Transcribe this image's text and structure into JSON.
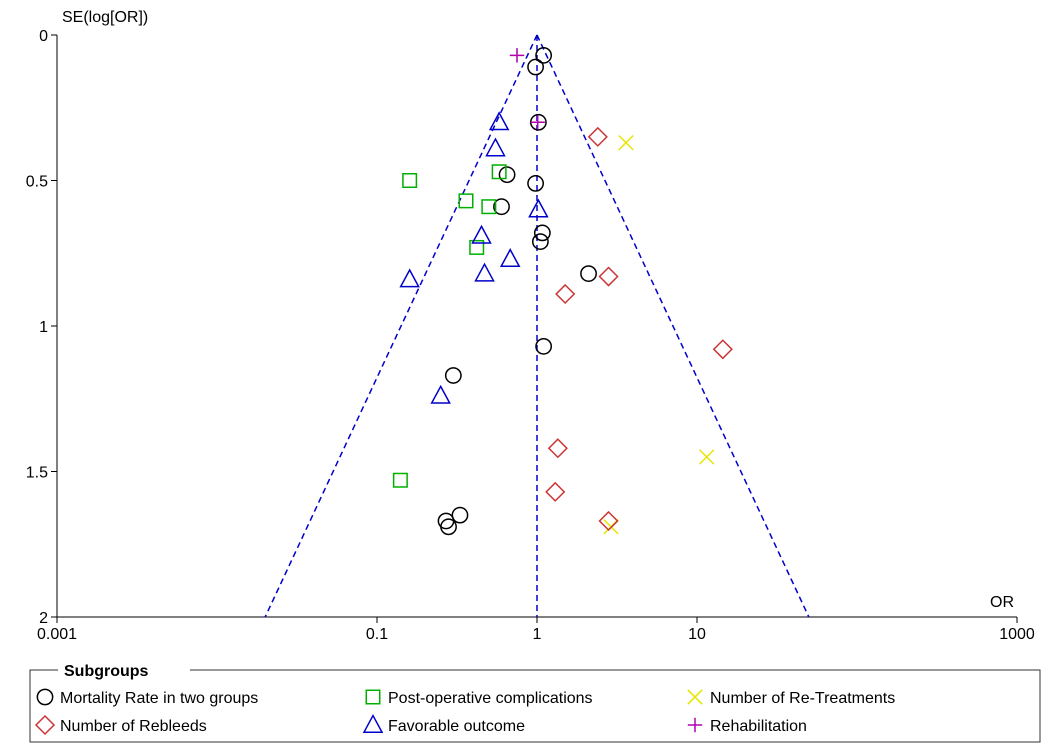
{
  "chart_data": {
    "type": "scatter",
    "subtype": "funnel-plot",
    "title": "",
    "xlabel": "OR",
    "ylabel": "SE(log[OR])",
    "x_scale": "log",
    "xlim": [
      0.001,
      1000
    ],
    "ylim": [
      0,
      2
    ],
    "y_inverted": true,
    "x_ticks": [
      0.001,
      0.1,
      1,
      10,
      1000
    ],
    "x_tick_labels": [
      "0.001",
      "0.1",
      "1",
      "10",
      "1000"
    ],
    "y_ticks": [
      0,
      0.5,
      1,
      1.5,
      2
    ],
    "y_tick_labels": [
      "0",
      "0.5",
      "1",
      "1.5",
      "2"
    ],
    "grid": false,
    "pooled_or": 1,
    "funnel_bottom_se": 2,
    "funnel_bottom_or": [
      0.02,
      50
    ],
    "funnel_color": "#0000cc",
    "legend": {
      "title": "Subgroups",
      "placement": "bottom"
    },
    "series": [
      {
        "name": "Mortality Rate in two groups",
        "marker": "circle",
        "color": "#000000",
        "points": [
          {
            "x": 1.1,
            "y": 0.07
          },
          {
            "x": 0.98,
            "y": 0.11
          },
          {
            "x": 1.02,
            "y": 0.3
          },
          {
            "x": 0.65,
            "y": 0.48
          },
          {
            "x": 0.98,
            "y": 0.51
          },
          {
            "x": 0.6,
            "y": 0.59
          },
          {
            "x": 1.08,
            "y": 0.68
          },
          {
            "x": 1.05,
            "y": 0.71
          },
          {
            "x": 2.1,
            "y": 0.82
          },
          {
            "x": 1.1,
            "y": 1.07
          },
          {
            "x": 0.3,
            "y": 1.17
          },
          {
            "x": 0.33,
            "y": 1.65
          },
          {
            "x": 0.27,
            "y": 1.67
          },
          {
            "x": 0.28,
            "y": 1.69
          }
        ]
      },
      {
        "name": "Post-operative complications",
        "marker": "square",
        "color": "#00b000",
        "points": [
          {
            "x": 0.16,
            "y": 0.5
          },
          {
            "x": 0.36,
            "y": 0.57
          },
          {
            "x": 0.5,
            "y": 0.59
          },
          {
            "x": 0.58,
            "y": 0.47
          },
          {
            "x": 0.42,
            "y": 0.73
          },
          {
            "x": 0.14,
            "y": 1.53
          }
        ]
      },
      {
        "name": "Number of Re-Treatments",
        "marker": "x",
        "color": "#e6e600",
        "points": [
          {
            "x": 3.6,
            "y": 0.37
          },
          {
            "x": 11.5,
            "y": 1.45
          },
          {
            "x": 2.9,
            "y": 1.69
          }
        ]
      },
      {
        "name": "Number of Rebleeds",
        "marker": "diamond",
        "color": "#cc3333",
        "points": [
          {
            "x": 2.4,
            "y": 0.35
          },
          {
            "x": 2.8,
            "y": 0.83
          },
          {
            "x": 1.5,
            "y": 0.89
          },
          {
            "x": 14.5,
            "y": 1.08
          },
          {
            "x": 1.35,
            "y": 1.42
          },
          {
            "x": 1.3,
            "y": 1.57
          },
          {
            "x": 2.8,
            "y": 1.67
          }
        ]
      },
      {
        "name": "Favorable outcome",
        "marker": "triangle",
        "color": "#0000cc",
        "points": [
          {
            "x": 0.58,
            "y": 0.3
          },
          {
            "x": 0.55,
            "y": 0.39
          },
          {
            "x": 1.02,
            "y": 0.6
          },
          {
            "x": 0.45,
            "y": 0.69
          },
          {
            "x": 0.68,
            "y": 0.77
          },
          {
            "x": 0.47,
            "y": 0.82
          },
          {
            "x": 0.16,
            "y": 0.84
          },
          {
            "x": 0.25,
            "y": 1.24
          }
        ]
      },
      {
        "name": "Rehabilitation",
        "marker": "plus",
        "color": "#b000b0",
        "points": [
          {
            "x": 0.75,
            "y": 0.07
          },
          {
            "x": 1.01,
            "y": 0.3
          }
        ]
      }
    ]
  }
}
